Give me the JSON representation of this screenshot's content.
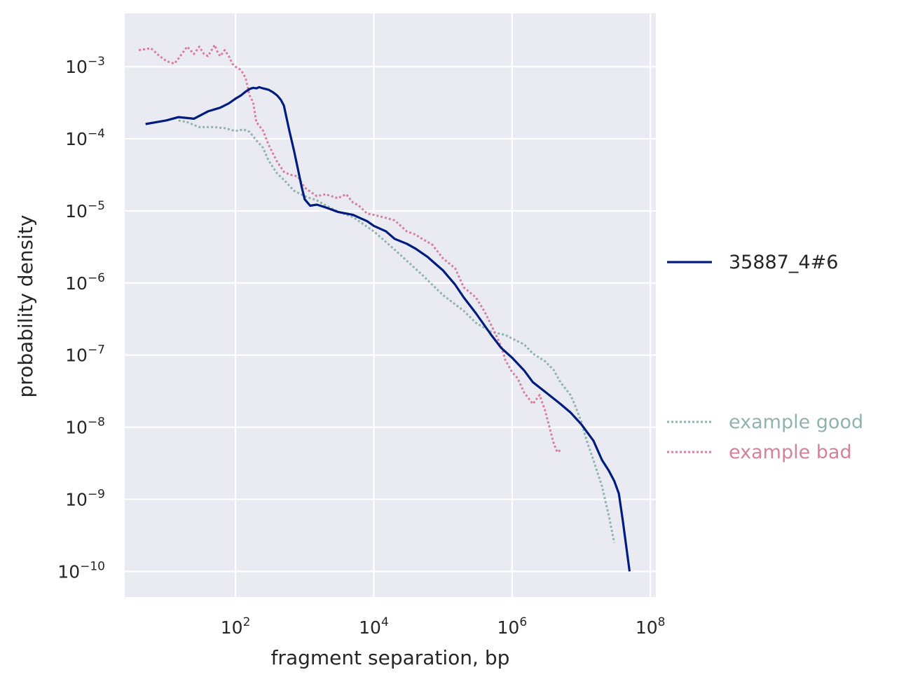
{
  "chart_data": {
    "type": "line",
    "title": "",
    "xlabel": "fragment separation, bp",
    "ylabel": "probability density",
    "xscale": "log",
    "yscale": "log",
    "xlim": [
      2.5,
      120000000
    ],
    "ylim": [
      4.4e-11,
      0.0055
    ],
    "grid": true,
    "xticks": [
      {
        "value": 100,
        "base": "10",
        "exp": "2"
      },
      {
        "value": 10000,
        "base": "10",
        "exp": "4"
      },
      {
        "value": 1000000,
        "base": "10",
        "exp": "6"
      },
      {
        "value": 100000000,
        "base": "10",
        "exp": "8"
      }
    ],
    "yticks": [
      {
        "value": 0.001,
        "base": "10",
        "exp": "−3"
      },
      {
        "value": 0.0001,
        "base": "10",
        "exp": "−4"
      },
      {
        "value": 1e-05,
        "base": "10",
        "exp": "−5"
      },
      {
        "value": 1e-06,
        "base": "10",
        "exp": "−6"
      },
      {
        "value": 1e-07,
        "base": "10",
        "exp": "−7"
      },
      {
        "value": 1e-08,
        "base": "10",
        "exp": "−8"
      },
      {
        "value": 1e-09,
        "base": "10",
        "exp": "−9"
      },
      {
        "value": 1e-10,
        "base": "10",
        "exp": "−10"
      }
    ],
    "legend_placement": "right",
    "series": [
      {
        "name": "35887_4#6",
        "color": "#001c7f",
        "style": "solid",
        "x": [
          5,
          10,
          15,
          25,
          40,
          60,
          80,
          100,
          120,
          140,
          160,
          180,
          200,
          220,
          250,
          300,
          350,
          400,
          450,
          500,
          600,
          700,
          800,
          900,
          1000,
          1200,
          1500,
          2000,
          3000,
          5000,
          8000,
          10000,
          15000,
          20000,
          30000,
          40000,
          60000,
          80000,
          100000,
          150000,
          200000,
          300000,
          500000,
          700000,
          1000000,
          1500000,
          2000000,
          3000000,
          5000000,
          7000000,
          10000000,
          15000000,
          20000000,
          25000000,
          30000000,
          35000000,
          40000000,
          50000000
        ],
        "y": [
          0.00016,
          0.00018,
          0.0002,
          0.00019,
          0.00024,
          0.00027,
          0.00031,
          0.00036,
          0.0004,
          0.00045,
          0.00049,
          0.00051,
          0.0005,
          0.00052,
          0.0005,
          0.00048,
          0.00044,
          0.0004,
          0.00035,
          0.00029,
          0.00013,
          6.9e-05,
          3.8e-05,
          2.2e-05,
          1.45e-05,
          1.18e-05,
          1.22e-05,
          1.12e-05,
          9.7e-06,
          8.8e-06,
          7.2e-06,
          6.2e-06,
          5.2e-06,
          4.1e-06,
          3.5e-06,
          3e-06,
          2.3e-06,
          1.8e-06,
          1.5e-06,
          9.5e-07,
          6.3e-07,
          3.8e-07,
          1.9e-07,
          1.25e-07,
          9.2e-08,
          6.1e-08,
          4.2e-08,
          3.1e-08,
          2.1e-08,
          1.6e-08,
          1.1e-08,
          6.5e-09,
          3.5e-09,
          2.5e-09,
          1.8e-09,
          1.2e-09,
          5e-10,
          1e-10
        ]
      },
      {
        "name": "example good",
        "color": "#8fb3ad",
        "style": "dotted",
        "x": [
          15,
          20,
          30,
          50,
          70,
          100,
          130,
          160,
          200,
          250,
          300,
          400,
          500,
          700,
          1000,
          1500,
          2000,
          3000,
          5000,
          10000,
          20000,
          50000,
          100000,
          200000,
          300000,
          500000,
          800000,
          1000000,
          1500000,
          2000000,
          3000000,
          4000000,
          5000000,
          7000000,
          8000000,
          10000000,
          12000000,
          15000000,
          20000000,
          25000000,
          30000000
        ],
        "y": [
          0.00018,
          0.00017,
          0.000145,
          0.000145,
          0.00014,
          0.000128,
          0.000135,
          0.000125,
          9.5e-05,
          7.5e-05,
          5e-05,
          3.3e-05,
          2.7e-05,
          1.9e-05,
          1.6e-05,
          1.4e-05,
          1.2e-05,
          9.8e-06,
          8.2e-06,
          5.2e-06,
          2.9e-06,
          1.3e-06,
          6.8e-07,
          4.1e-07,
          2.8e-07,
          2.1e-07,
          1.9e-07,
          1.7e-07,
          1.4e-07,
          1.05e-07,
          8.2e-08,
          6.2e-08,
          4.2e-08,
          2.8e-08,
          2.1e-08,
          1.2e-08,
          6.5e-09,
          3.5e-09,
          1.5e-09,
          6e-10,
          2.5e-10
        ]
      },
      {
        "name": "example bad",
        "color": "#d5809d",
        "style": "dotted",
        "x": [
          4,
          6,
          8,
          10,
          13,
          15,
          20,
          25,
          30,
          35,
          40,
          50,
          55,
          60,
          70,
          80,
          90,
          100,
          120,
          140,
          160,
          180,
          200,
          250,
          300,
          400,
          500,
          600,
          800,
          1000,
          1500,
          2000,
          3000,
          4000,
          5000,
          6000,
          8000,
          10000,
          15000,
          20000,
          30000,
          40000,
          50000,
          70000,
          100000,
          150000,
          200000,
          300000,
          400000,
          500000,
          600000,
          700000,
          800000,
          1000000,
          1200000,
          1500000,
          2000000,
          2500000,
          3000000,
          3500000,
          4000000,
          4500000,
          5000000
        ],
        "y": [
          0.0017,
          0.0018,
          0.0014,
          0.0012,
          0.0011,
          0.0013,
          0.0019,
          0.0015,
          0.0019,
          0.0015,
          0.0014,
          0.002,
          0.0016,
          0.0014,
          0.0017,
          0.0014,
          0.0011,
          0.001,
          0.0009,
          0.0007,
          0.0004,
          0.00032,
          0.00017,
          0.00013,
          8.3e-05,
          4.8e-05,
          3.5e-05,
          3.2e-05,
          3e-05,
          2.1e-05,
          1.6e-05,
          1.7e-05,
          1.5e-05,
          1.7e-05,
          1.3e-05,
          1.2e-05,
          9.2e-06,
          8.8e-06,
          8e-06,
          7.4e-06,
          5.2e-06,
          4.7e-06,
          4.1e-06,
          3.4e-06,
          2.2e-06,
          1.6e-06,
          8.7e-07,
          6.3e-07,
          4e-07,
          2.6e-07,
          1.8e-07,
          1.3e-07,
          8.5e-08,
          5.8e-08,
          4.8e-08,
          3e-08,
          2.1e-08,
          2.8e-08,
          1.7e-08,
          9.7e-09,
          6e-09,
          4.5e-09,
          4.8e-09
        ]
      }
    ]
  }
}
